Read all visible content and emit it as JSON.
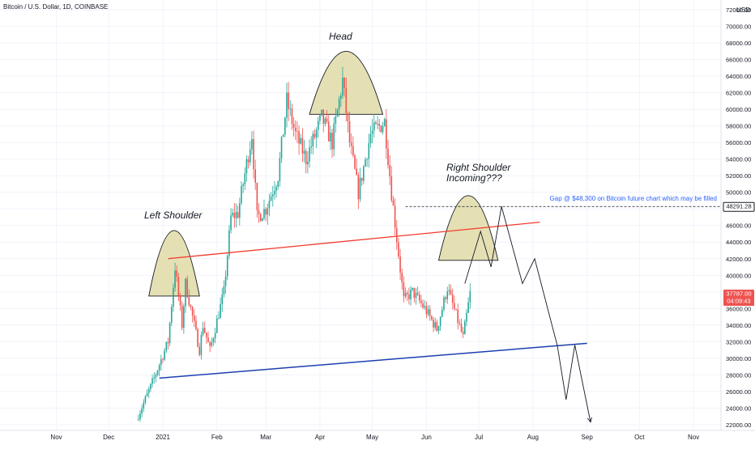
{
  "header": {
    "symbol_title": "Bitcoin / U.S. Dollar, 1D, COINBASE",
    "currency": "USD"
  },
  "colors": {
    "up_candle": "#26a69a",
    "down_candle": "#ef5350",
    "red_line": "#f23a2e",
    "blue_line": "#1c3fb0",
    "arc_fill": "#e4e0b4",
    "grid": "#f0f3fa",
    "axis_text": "#131722",
    "price_badge": "#ef5350"
  },
  "chart_data": {
    "type": "candlestick",
    "x_tick_labels": [
      "Nov",
      "Dec",
      "2021",
      "Feb",
      "Mar",
      "Apr",
      "May",
      "Jun",
      "Jul",
      "Aug",
      "Sep",
      "Oct",
      "Nov"
    ],
    "y_tick_labels": [
      "22000.00",
      "24000.00",
      "26000.00",
      "28000.00",
      "30000.00",
      "32000.00",
      "34000.00",
      "36000.00",
      "38000.00",
      "40000.00",
      "42000.00",
      "44000.00",
      "46000.00",
      "48000.00",
      "50000.00",
      "52000.00",
      "54000.00",
      "56000.00",
      "58000.00",
      "60000.00",
      "62000.00",
      "64000.00",
      "66000.00",
      "68000.00",
      "70000.00",
      "72000.00"
    ],
    "y_ticks": [
      22000,
      24000,
      26000,
      28000,
      30000,
      32000,
      34000,
      36000,
      38000,
      40000,
      42000,
      44000,
      46000,
      48000,
      50000,
      52000,
      54000,
      56000,
      58000,
      60000,
      62000,
      64000,
      66000,
      68000,
      70000,
      72000
    ],
    "ylim": [
      21300,
      72600
    ],
    "price_path": [
      [
        "2020-12-17",
        22600
      ],
      [
        "2020-12-27",
        27600
      ],
      [
        "2021-01-04",
        32000
      ],
      [
        "2021-01-08",
        41000
      ],
      [
        "2021-01-12",
        34000
      ],
      [
        "2021-01-14",
        39000
      ],
      [
        "2021-01-22",
        31000
      ],
      [
        "2021-01-24",
        34000
      ],
      [
        "2021-01-28",
        31000
      ],
      [
        "2021-02-05",
        38000
      ],
      [
        "2021-02-09",
        47000
      ],
      [
        "2021-02-13",
        47500
      ],
      [
        "2021-02-21",
        57000
      ],
      [
        "2021-02-24",
        47000
      ],
      [
        "2021-03-01",
        48000
      ],
      [
        "2021-03-08",
        52000
      ],
      [
        "2021-03-13",
        61000
      ],
      [
        "2021-03-18",
        57000
      ],
      [
        "2021-03-24",
        54000
      ],
      [
        "2021-04-02",
        59000
      ],
      [
        "2021-04-08",
        56000
      ],
      [
        "2021-04-14",
        63500
      ],
      [
        "2021-04-18",
        56000
      ],
      [
        "2021-04-23",
        50000
      ],
      [
        "2021-04-30",
        57000
      ],
      [
        "2021-05-08",
        58500
      ],
      [
        "2021-05-12",
        50000
      ],
      [
        "2021-05-19",
        37000
      ],
      [
        "2021-05-24",
        38000
      ],
      [
        "2021-05-31",
        36000
      ],
      [
        "2021-06-07",
        33500
      ],
      [
        "2021-06-13",
        38500
      ],
      [
        "2021-06-22",
        32500
      ],
      [
        "2021-06-26",
        37787
      ]
    ],
    "current_price": {
      "price": "37787.00",
      "countdown": "04:09:43",
      "value": 37787
    },
    "gap": {
      "price_label": "48291.28",
      "value": 48291.28,
      "note": "Gap @ $48,300 on Bitcoin future chart which may be filled"
    },
    "annotations": {
      "left_shoulder": "Left Shoulder",
      "head": "Head",
      "right_shoulder_line1": "Right Shoulder",
      "right_shoulder_line2": "Incoming???"
    },
    "trendlines": {
      "red_neckline": [
        [
          "2021-01-04",
          42000
        ],
        [
          "2021-08-05",
          46400
        ]
      ],
      "blue_support": [
        [
          "2020-12-30",
          27600
        ],
        [
          "2021-09-01",
          31800
        ]
      ]
    },
    "projected_path": [
      [
        "2021-06-23",
        39000
      ],
      [
        "2021-07-02",
        45300
      ],
      [
        "2021-07-08",
        41000
      ],
      [
        "2021-07-14",
        48300
      ],
      [
        "2021-07-26",
        39000
      ],
      [
        "2021-08-02",
        42000
      ],
      [
        "2021-08-15",
        31500
      ],
      [
        "2021-08-20",
        25000
      ],
      [
        "2021-08-25",
        31600
      ],
      [
        "2021-09-03",
        22300
      ]
    ],
    "arcs": [
      {
        "name": "left_shoulder",
        "x0": "2020-12-24",
        "x1": "2021-01-22",
        "base": 37500,
        "peak": 45400
      },
      {
        "name": "head",
        "x0": "2021-03-26",
        "x1": "2021-05-07",
        "base": 59400,
        "peak": 67000
      },
      {
        "name": "right_shoulder",
        "x0": "2021-06-08",
        "x1": "2021-07-12",
        "base": 41800,
        "peak": 49600
      }
    ]
  }
}
